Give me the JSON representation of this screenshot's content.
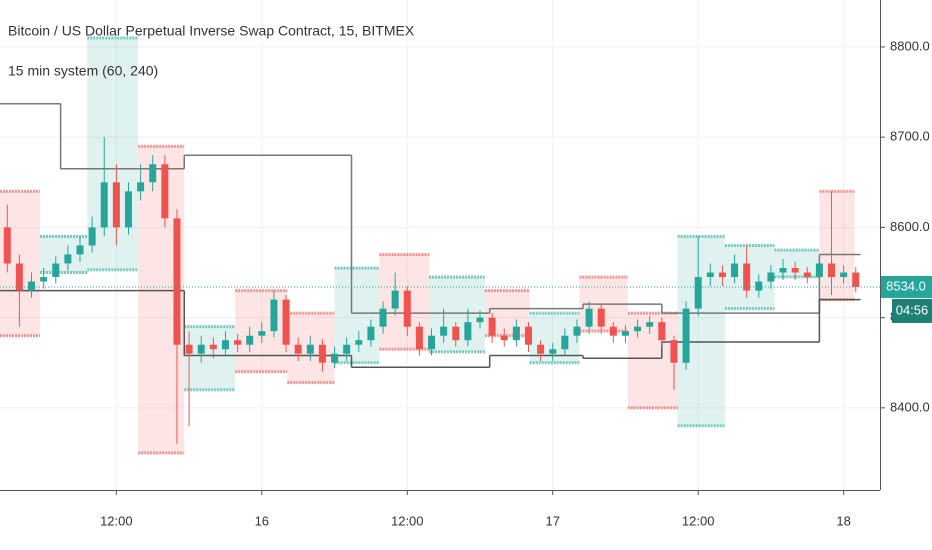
{
  "chart_data": {
    "type": "candlestick",
    "title": "Bitcoin / US Dollar Perpetual Inverse Swap Contract, 15, BITMEX",
    "subtitle": "15 min system (60, 240)",
    "up_color": "#26a69a",
    "down_color": "#ef5350",
    "grid": true,
    "xlim": [
      -21.6,
      51
    ],
    "xticks": [
      {
        "value": -12,
        "label": "12:00"
      },
      {
        "value": 0,
        "label": "16"
      },
      {
        "value": 12,
        "label": "12:00"
      },
      {
        "value": 24,
        "label": "17"
      },
      {
        "value": 36,
        "label": "12:00"
      },
      {
        "value": 48,
        "label": "18"
      }
    ],
    "ylim": [
      8309,
      8852
    ],
    "yticks": [
      {
        "value": 8400,
        "label": "8400.0"
      },
      {
        "value": 8500,
        "label": "8500.0"
      },
      {
        "value": 8600,
        "label": "8600.0"
      },
      {
        "value": 8700,
        "label": "8700.0"
      },
      {
        "value": 8800,
        "label": "8800.0"
      }
    ],
    "x": [
      -21,
      -20,
      -19,
      -18,
      -17,
      -16,
      -15,
      -14,
      -13,
      -12,
      -11,
      -10,
      -9,
      -8,
      -7,
      -6,
      -5,
      -4,
      -3,
      -2,
      -1,
      0,
      1,
      2,
      3,
      4,
      5,
      6,
      7,
      8,
      9,
      10,
      11,
      12,
      13,
      14,
      15,
      16,
      17,
      18,
      19,
      20,
      21,
      22,
      23,
      24,
      25,
      26,
      27,
      28,
      29,
      30,
      31,
      32,
      33,
      34,
      35,
      36,
      37,
      38,
      39,
      40,
      41,
      42,
      43,
      44,
      45,
      46,
      47,
      48,
      49
    ],
    "open": [
      8600,
      8560,
      8530,
      8540,
      8545,
      8560,
      8570,
      8580,
      8600,
      8650,
      8600,
      8640,
      8650,
      8670,
      8610,
      8470,
      8460,
      8470,
      8465,
      8475,
      8470,
      8480,
      8485,
      8520,
      8470,
      8460,
      8470,
      8450,
      8460,
      8470,
      8475,
      8490,
      8510,
      8530,
      8490,
      8465,
      8480,
      8490,
      8475,
      8495,
      8500,
      8480,
      8475,
      8490,
      8470,
      8460,
      8465,
      8480,
      8490,
      8510,
      8490,
      8480,
      8485,
      8490,
      8495,
      8475,
      8450,
      8510,
      8545,
      8550,
      8545,
      8560,
      8530,
      8540,
      8550,
      8555,
      8550,
      8545,
      8560,
      8545,
      8550
    ],
    "high": [
      8625,
      8570,
      8550,
      8555,
      8568,
      8580,
      8590,
      8612,
      8700,
      8670,
      8650,
      8670,
      8680,
      8680,
      8620,
      8485,
      8480,
      8478,
      8485,
      8482,
      8490,
      8495,
      8530,
      8525,
      8478,
      8480,
      8476,
      8468,
      8478,
      8485,
      8498,
      8518,
      8550,
      8535,
      8495,
      8488,
      8510,
      8495,
      8510,
      8508,
      8505,
      8488,
      8498,
      8495,
      8475,
      8472,
      8488,
      8498,
      8518,
      8515,
      8495,
      8492,
      8498,
      8502,
      8500,
      8480,
      8518,
      8590,
      8560,
      8558,
      8570,
      8580,
      8548,
      8558,
      8565,
      8562,
      8556,
      8570,
      8640,
      8558,
      8556
    ],
    "low": [
      8550,
      8490,
      8522,
      8532,
      8538,
      8552,
      8562,
      8572,
      8590,
      8580,
      8592,
      8630,
      8640,
      8600,
      8360,
      8380,
      8450,
      8455,
      8458,
      8462,
      8462,
      8472,
      8478,
      8462,
      8452,
      8452,
      8440,
      8444,
      8452,
      8462,
      8468,
      8482,
      8502,
      8480,
      8458,
      8458,
      8472,
      8468,
      8468,
      8488,
      8472,
      8468,
      8468,
      8462,
      8452,
      8452,
      8458,
      8472,
      8482,
      8482,
      8472,
      8472,
      8478,
      8482,
      8468,
      8420,
      8442,
      8502,
      8535,
      8535,
      8538,
      8522,
      8522,
      8532,
      8542,
      8542,
      8538,
      8538,
      8525,
      8538,
      8528
    ],
    "close": [
      8560,
      8530,
      8540,
      8545,
      8560,
      8570,
      8580,
      8600,
      8650,
      8600,
      8640,
      8650,
      8670,
      8610,
      8470,
      8460,
      8470,
      8465,
      8475,
      8470,
      8480,
      8485,
      8520,
      8470,
      8460,
      8470,
      8450,
      8460,
      8470,
      8475,
      8490,
      8510,
      8530,
      8490,
      8465,
      8480,
      8490,
      8475,
      8495,
      8500,
      8480,
      8475,
      8490,
      8470,
      8460,
      8465,
      8480,
      8490,
      8510,
      8490,
      8480,
      8485,
      8490,
      8495,
      8475,
      8450,
      8510,
      8545,
      8550,
      8545,
      8560,
      8530,
      8540,
      8550,
      8555,
      8550,
      8545,
      8560,
      8545,
      8550,
      8534
    ],
    "boxes": [
      {
        "x0": -21.6,
        "x1": -18.3,
        "high": 8640,
        "low": 8480,
        "direction": "down"
      },
      {
        "x0": -18.3,
        "x1": -14.4,
        "high": 8590,
        "low": 8550,
        "direction": "up"
      },
      {
        "x0": -14.4,
        "x1": -10.2,
        "high": 8810,
        "low": 8553,
        "direction": "up"
      },
      {
        "x0": -10.2,
        "x1": -6.4,
        "high": 8690,
        "low": 8350,
        "direction": "down"
      },
      {
        "x0": -6.4,
        "x1": -2.2,
        "high": 8490,
        "low": 8420,
        "direction": "up"
      },
      {
        "x0": -2.2,
        "x1": 2.1,
        "high": 8530,
        "low": 8440,
        "direction": "down"
      },
      {
        "x0": 2.1,
        "x1": 6,
        "high": 8505,
        "low": 8428,
        "direction": "down"
      },
      {
        "x0": 6,
        "x1": 9.7,
        "high": 8555,
        "low": 8450,
        "direction": "up"
      },
      {
        "x0": 9.7,
        "x1": 13.8,
        "high": 8570,
        "low": 8465,
        "direction": "down"
      },
      {
        "x0": 13.8,
        "x1": 18.4,
        "high": 8545,
        "low": 8462,
        "direction": "up"
      },
      {
        "x0": 18.4,
        "x1": 22.1,
        "high": 8530,
        "low": 8480,
        "direction": "down"
      },
      {
        "x0": 22.1,
        "x1": 26.2,
        "high": 8505,
        "low": 8450,
        "direction": "up"
      },
      {
        "x0": 26.2,
        "x1": 30.2,
        "high": 8545,
        "low": 8485,
        "direction": "down"
      },
      {
        "x0": 30.2,
        "x1": 34.3,
        "high": 8505,
        "low": 8400,
        "direction": "down"
      },
      {
        "x0": 34.3,
        "x1": 38.2,
        "high": 8590,
        "low": 8380,
        "direction": "up"
      },
      {
        "x0": 38.2,
        "x1": 42.3,
        "high": 8580,
        "low": 8510,
        "direction": "up"
      },
      {
        "x0": 42.3,
        "x1": 46,
        "high": 8575,
        "low": 8545,
        "direction": "up"
      },
      {
        "x0": 46,
        "x1": 48.9,
        "high": 8640,
        "low": 8520,
        "direction": "down"
      }
    ],
    "step_lines": [
      {
        "color": "#777777",
        "x": [
          -21.6,
          -16.6,
          -6.4,
          7.4,
          18.8,
          26.5,
          33,
          46,
          49.4
        ],
        "values": [
          8737,
          8665,
          8680,
          8505,
          8510,
          8515,
          8505,
          8570,
          8570
        ]
      },
      {
        "color": "#555555",
        "x": [
          -21.6,
          -6.4,
          7.4,
          18.8,
          26.5,
          33,
          46,
          49.4
        ],
        "values": [
          8530,
          8458,
          8445,
          8458,
          8455,
          8473,
          8520,
          8520
        ]
      }
    ],
    "last_price": {
      "value": 8534,
      "label": "8534.0"
    },
    "countdown": "04:56"
  }
}
